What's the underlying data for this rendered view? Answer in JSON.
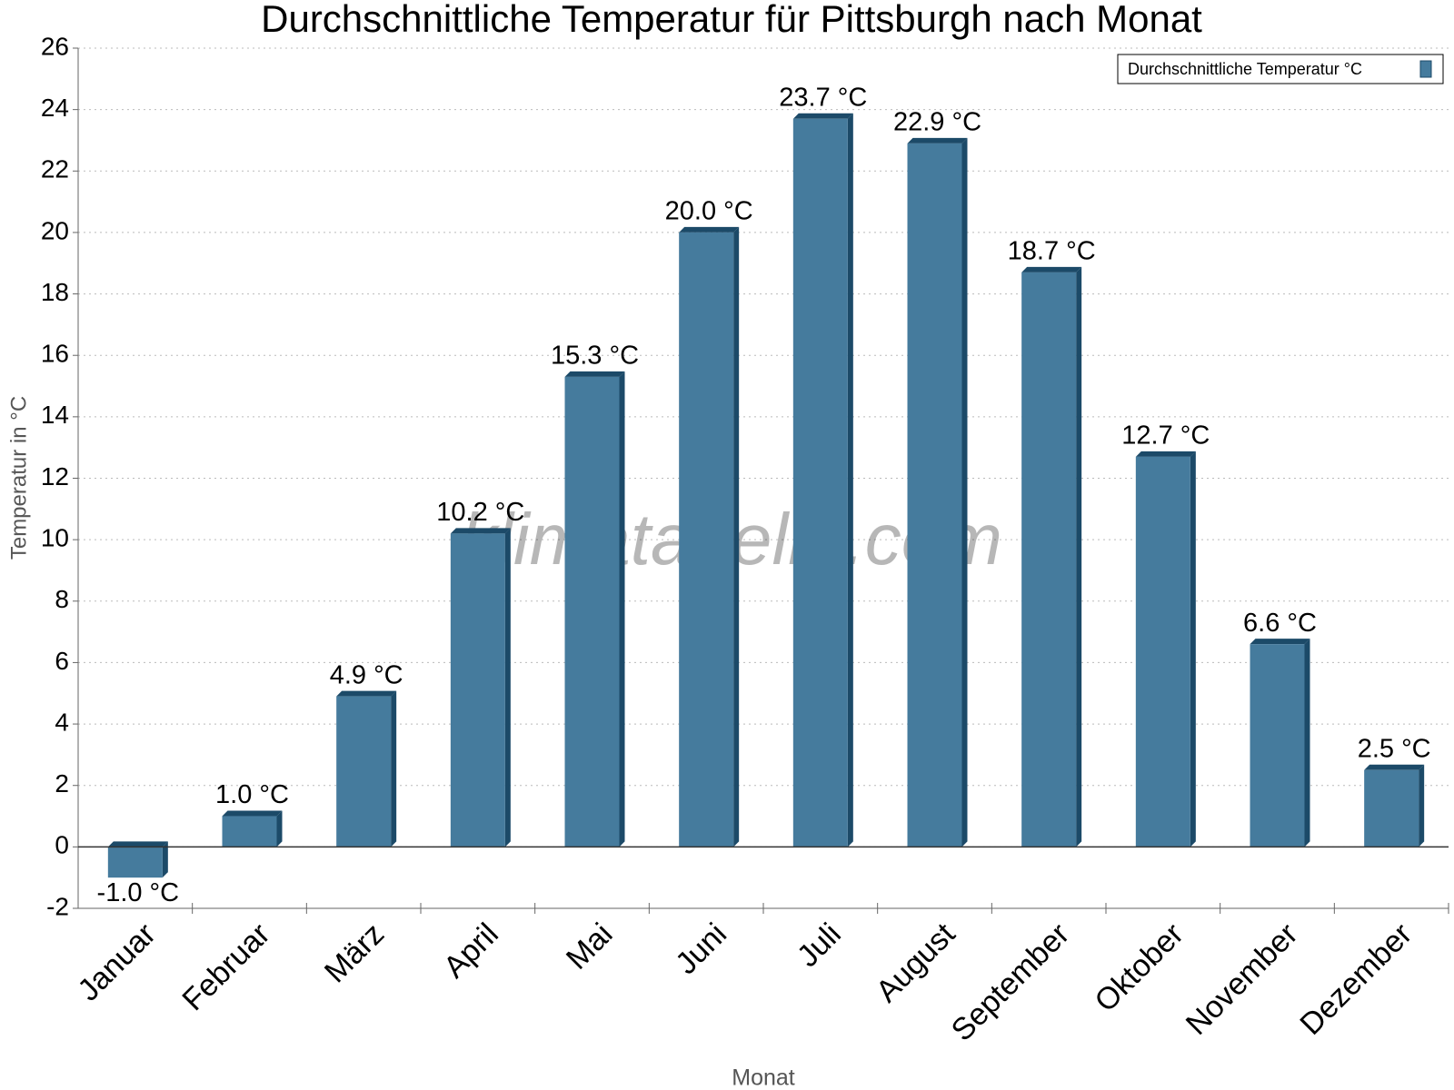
{
  "chart_data": {
    "type": "bar",
    "title": "Durchschnittliche Temperatur für Pittsburgh nach Monat",
    "x_label": "Monat",
    "y_label": "Temperatur in °C",
    "watermark": "klimatabelle.com",
    "categories": [
      "Januar",
      "Februar",
      "März",
      "April",
      "Mai",
      "Juni",
      "Juli",
      "August",
      "September",
      "Oktober",
      "November",
      "Dezember"
    ],
    "series": [
      {
        "name": "Durchschnittliche Temperatur °C",
        "color": "#457b9d",
        "values": [
          -1.0,
          1.0,
          4.9,
          10.2,
          15.3,
          20.0,
          23.7,
          22.9,
          18.7,
          12.7,
          6.6,
          2.5
        ],
        "value_labels": [
          "-1.0 °C",
          "1.0 °C",
          "4.9 °C",
          "10.2 °C",
          "15.3 °C",
          "20.0 °C",
          "23.7 °C",
          "22.9 °C",
          "18.7 °C",
          "12.7 °C",
          "6.6 °C",
          "2.5 °C"
        ]
      }
    ],
    "ylim": [
      -2,
      26
    ],
    "yticks": [
      -2,
      0,
      2,
      4,
      6,
      8,
      10,
      12,
      14,
      16,
      18,
      20,
      22,
      24,
      26
    ],
    "grid": true,
    "legend": "upper right"
  }
}
